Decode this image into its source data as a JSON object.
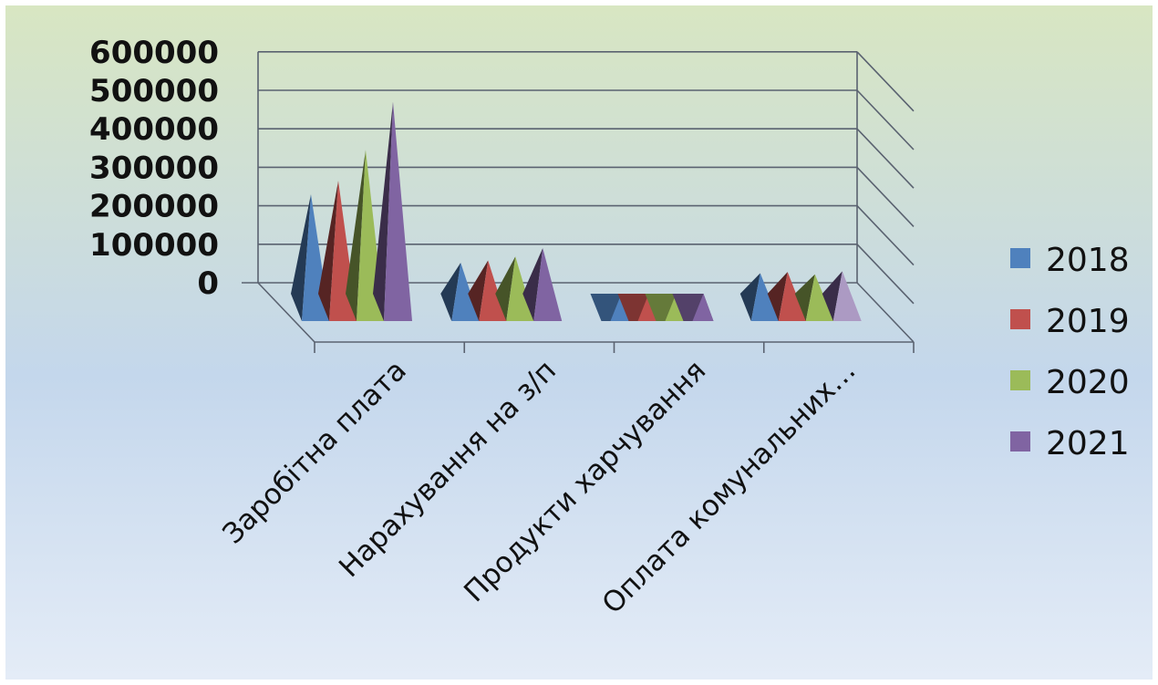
{
  "chart_data": {
    "type": "bar",
    "style": "3d-pyramid",
    "categories": [
      "Заробітна плата",
      "Нарахування на з/п",
      "Продукти харчування",
      "Оплата комунальних…"
    ],
    "series": [
      {
        "name": "2018",
        "values": [
          230000,
          52000,
          5000,
          25000
        ],
        "color": "#4F81BD"
      },
      {
        "name": "2019",
        "values": [
          265000,
          58000,
          5000,
          28000
        ],
        "color": "#C0504D"
      },
      {
        "name": "2020",
        "values": [
          345000,
          68000,
          5000,
          22000
        ],
        "color": "#9BBB59"
      },
      {
        "name": "2021",
        "values": [
          470000,
          90000,
          5000,
          30000
        ],
        "color": "#8064A2"
      }
    ],
    "y_ticks": [
      "0",
      "100000",
      "200000",
      "300000",
      "400000",
      "500000",
      "600000"
    ],
    "ylim": [
      0,
      600000
    ],
    "grid": true,
    "legend": "right",
    "background": [
      "#d8e6c2",
      "#c4d7ec",
      "#e4ecf7"
    ]
  }
}
